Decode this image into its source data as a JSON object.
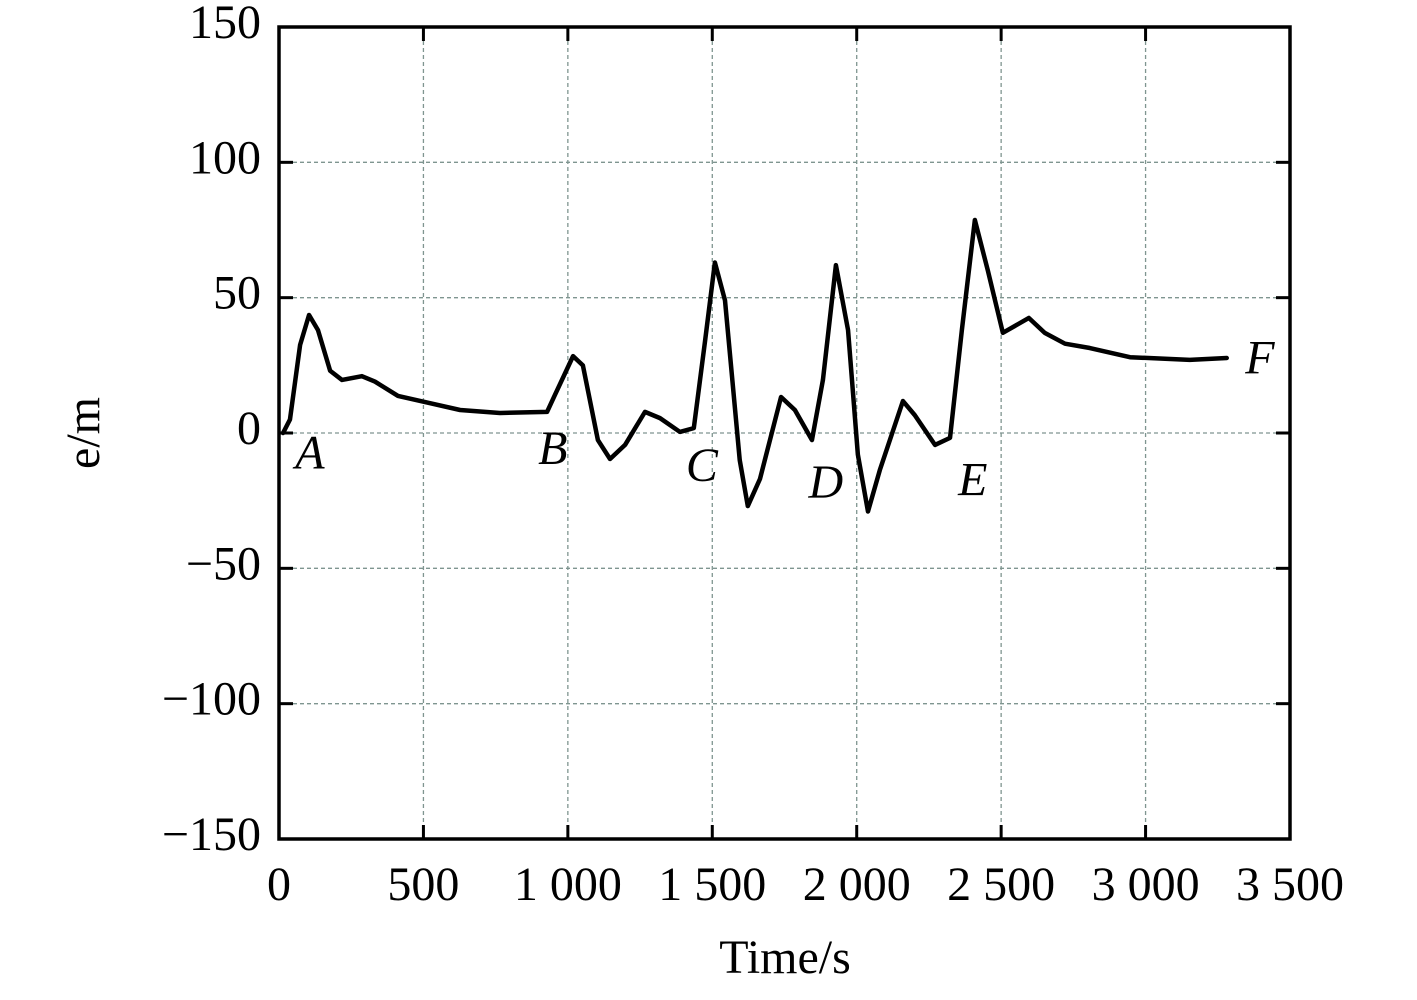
{
  "chart_data": {
    "type": "line",
    "xlabel": "Time/s",
    "ylabel": "e/m",
    "xlim": [
      0,
      3500
    ],
    "ylim": [
      -150,
      150
    ],
    "xticks": [
      0,
      500,
      {
        "value": 1000,
        "label": "1 000"
      },
      {
        "value": 1500,
        "label": "1 500"
      },
      {
        "value": 2000,
        "label": "2 000"
      },
      {
        "value": 2500,
        "label": "2 500"
      },
      {
        "value": 3000,
        "label": "3 000"
      },
      {
        "value": 3500,
        "label": "3 500"
      }
    ],
    "yticks": [
      {
        "value": -150,
        "label": "−150"
      },
      {
        "value": -100,
        "label": "−100"
      },
      {
        "value": -50,
        "label": "−50"
      },
      0,
      50,
      100,
      150
    ],
    "grid": true,
    "series": [
      {
        "color": "#000000",
        "x": [
          14,
          38,
          73,
          104,
          135,
          177,
          218,
          287,
          332,
          412,
          523,
          627,
          765,
          928,
          955,
          1018,
          1052,
          1104,
          1146,
          1198,
          1267,
          1319,
          1388,
          1436,
          1475,
          1509,
          1544,
          1595,
          1623,
          1665,
          1738,
          1786,
          1845,
          1883,
          1928,
          1970,
          2004,
          2039,
          2080,
          2160,
          2201,
          2271,
          2323,
          2364,
          2409,
          2454,
          2506,
          2596,
          2651,
          2721,
          2807,
          2946,
          3153,
          3281
        ],
        "values": [
          0,
          5,
          32.5,
          43.6,
          38,
          23,
          19.6,
          21,
          19,
          13.7,
          11,
          8.5,
          7.4,
          7.8,
          14,
          28.4,
          25,
          -2.6,
          -9.6,
          -4.4,
          7.8,
          5.5,
          0.4,
          1.8,
          34,
          63,
          49,
          -10,
          -27,
          -17,
          13.3,
          8.5,
          -2.6,
          19.6,
          62,
          38,
          -8,
          -29,
          -13.7,
          11.8,
          6.6,
          -4.4,
          -1.8,
          38,
          78.7,
          60,
          37,
          42.5,
          37,
          33,
          31.4,
          28,
          27,
          27.7
        ]
      }
    ],
    "annotations": [
      {
        "text": "A",
        "x": 107,
        "y": -9
      },
      {
        "text": "B",
        "x": 948,
        "y": -7.4
      },
      {
        "text": "C",
        "x": 1464,
        "y": -13.7
      },
      {
        "text": "D",
        "x": 1893,
        "y": -20
      },
      {
        "text": "E",
        "x": 2402,
        "y": -19
      },
      {
        "text": "F",
        "x": 3396,
        "y": 26
      }
    ]
  }
}
